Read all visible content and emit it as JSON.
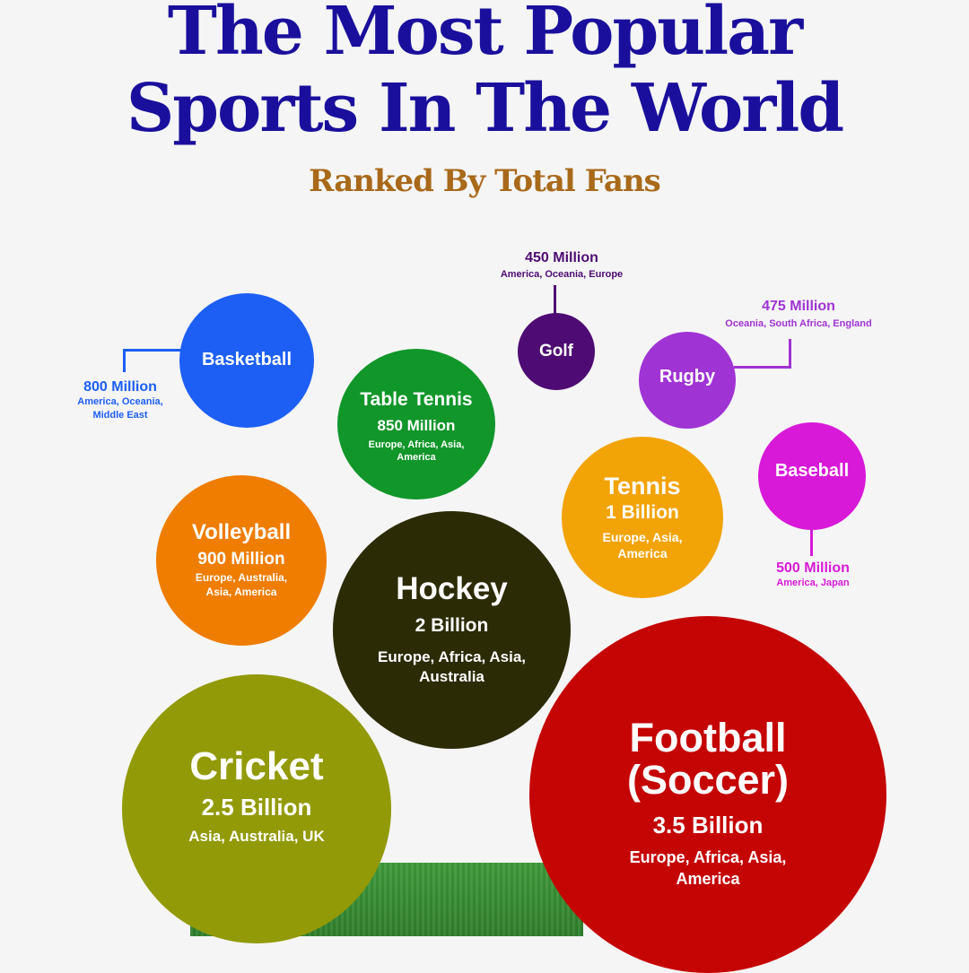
{
  "header": {
    "title_line1": "The Most Popular",
    "title_line2": "Sports In The World",
    "subtitle": "Ranked By Total Fans"
  },
  "colors": {
    "title": "#1a0f9c",
    "subtitle": "#a8691a",
    "basketball": "#1d5ff5",
    "table_tennis": "#11962a",
    "golf": "#4e0b73",
    "rugby": "#a033d4",
    "baseball": "#d819d8",
    "tennis": "#f2a306",
    "volleyball": "#ef7d00",
    "hockey": "#2b2b06",
    "cricket": "#929a07",
    "football": "#c50404"
  },
  "sports": {
    "basketball": {
      "name": "Basketball",
      "fans": "800 Million",
      "regions": "America, Oceania, Middle East",
      "regions_line1": "America, Oceania,",
      "regions_line2": "Middle East"
    },
    "table_tennis": {
      "name": "Table Tennis",
      "fans": "850 Million",
      "regions_line1": "Europe, Africa, Asia,",
      "regions_line2": "America"
    },
    "golf": {
      "name": "Golf",
      "fans": "450 Million",
      "regions": "America, Oceania, Europe"
    },
    "rugby": {
      "name": "Rugby",
      "fans": "475 Million",
      "regions": "Oceania, South Africa, England"
    },
    "baseball": {
      "name": "Baseball",
      "fans": "500 Million",
      "regions": "America, Japan"
    },
    "tennis": {
      "name": "Tennis",
      "fans": "1 Billion",
      "regions_line1": "Europe, Asia,",
      "regions_line2": "America"
    },
    "volleyball": {
      "name": "Volleyball",
      "fans": "900 Million",
      "regions_line1": "Europe, Australia,",
      "regions_line2": "Asia, America"
    },
    "hockey": {
      "name": "Hockey",
      "fans": "2 Billion",
      "regions_line1": "Europe, Africa, Asia,",
      "regions_line2": "Australia"
    },
    "cricket": {
      "name": "Cricket",
      "fans": "2.5 Billion",
      "regions": "Asia, Australia, UK"
    },
    "football": {
      "name_line1": "Football",
      "name_line2": "(Soccer)",
      "fans": "3.5 Billion",
      "regions_line1": "Europe, Africa, Asia,",
      "regions_line2": "America"
    }
  }
}
